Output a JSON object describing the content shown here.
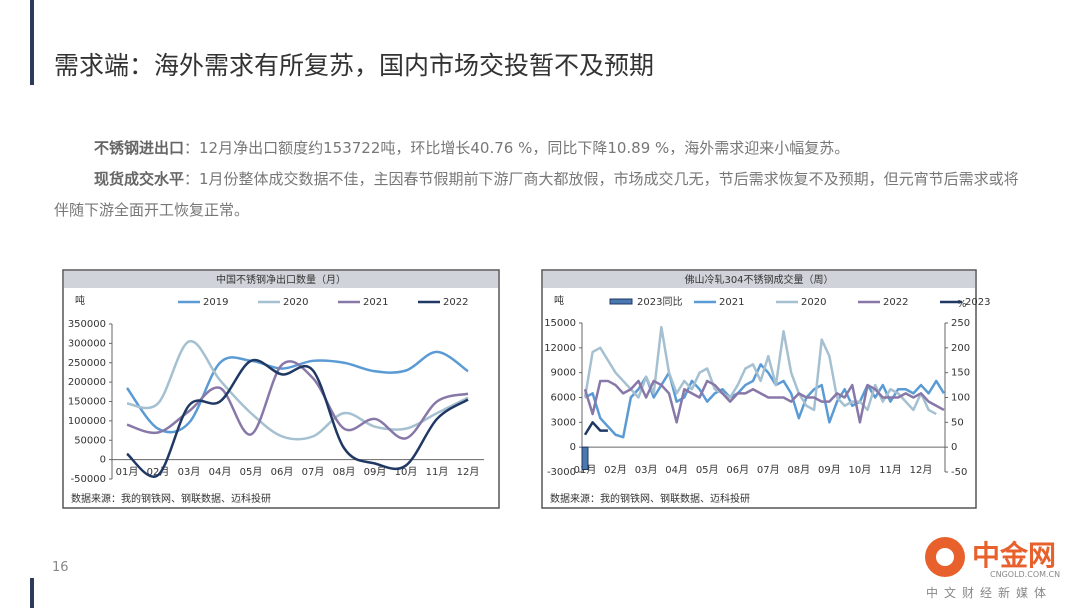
{
  "title": "需求端：海外需求有所复苏，国内市场交投暂不及预期",
  "paragraphs": [
    {
      "label": "不锈钢进出口",
      "text": "：12月净出口额度约153722吨，环比增长40.76 %，同比下降10.89 %，海外需求迎来小幅复苏。"
    },
    {
      "label": "现货成交水平",
      "text": "：1月份整体成交数据不佳，主因春节假期前下游厂商大都放假，市场成交几无，节后需求恢复不及预期，但元宵节后需求或将伴随下游全面开工恢复正常。"
    }
  ],
  "page_number": "16",
  "watermark": {
    "name": "中金网",
    "site": "CNGOLD.COM.CN",
    "slogan": "中文财经新媒体"
  },
  "chart_data": [
    {
      "type": "line",
      "smooth": true,
      "title": "中国不锈钢净出口数量（月）",
      "ylabel": "吨",
      "source": "数据来源：我的钢铁网、钢联数据、迈科投研",
      "categories": [
        "01月",
        "02月",
        "03月",
        "04月",
        "05月",
        "06月",
        "07月",
        "08月",
        "09月",
        "10月",
        "11月",
        "12月"
      ],
      "ylim": [
        -50000,
        350000
      ],
      "yticks": [
        -50000,
        0,
        50000,
        100000,
        150000,
        200000,
        250000,
        300000,
        350000
      ],
      "series": [
        {
          "name": "2019",
          "color": "#5b9bd5",
          "values": [
            185000,
            80000,
            95000,
            250000,
            255000,
            235000,
            255000,
            250000,
            228000,
            230000,
            278000,
            228000
          ]
        },
        {
          "name": "2020",
          "color": "#a5c0d0",
          "values": [
            145000,
            145000,
            305000,
            205000,
            120000,
            60000,
            60000,
            120000,
            85000,
            80000,
            120000,
            160000
          ]
        },
        {
          "name": "2021",
          "color": "#8878a8",
          "values": [
            90000,
            70000,
            125000,
            185000,
            65000,
            245000,
            210000,
            80000,
            105000,
            55000,
            150000,
            170000
          ]
        },
        {
          "name": "2022",
          "color": "#1f3864",
          "values": [
            15000,
            -40000,
            140000,
            150000,
            255000,
            220000,
            230000,
            30000,
            -10000,
            -15000,
            105000,
            155000
          ]
        }
      ]
    },
    {
      "type": "line",
      "smooth": false,
      "title": "佛山冷轧304不锈钢成交量（周）",
      "ylabel": "吨",
      "y2label": "%",
      "source": "数据来源：我的钢铁网、钢联数据、迈科投研",
      "categories": [
        "01月",
        null,
        null,
        null,
        "02月",
        null,
        null,
        null,
        "03月",
        null,
        null,
        null,
        "04月",
        null,
        null,
        null,
        "05月",
        null,
        null,
        null,
        "06月",
        null,
        null,
        null,
        "07月",
        null,
        null,
        null,
        "08月",
        null,
        null,
        null,
        "09月",
        null,
        null,
        null,
        "10月",
        null,
        null,
        null,
        "11月",
        null,
        null,
        null,
        "12月",
        null,
        null,
        null
      ],
      "ylim": [
        -3000,
        15000
      ],
      "yticks": [
        -3000,
        0,
        3000,
        6000,
        9000,
        12000,
        15000
      ],
      "y2lim": [
        -50,
        250
      ],
      "y2ticks": [
        -50,
        0,
        50,
        100,
        150,
        200,
        250
      ],
      "series": [
        {
          "name": "2023同比",
          "kind": "bar",
          "axis": "y2",
          "color": "#4a78b0",
          "values": [
            -45,
            null,
            null,
            null,
            null,
            null,
            null,
            null,
            null,
            null,
            null,
            null,
            null,
            null,
            null,
            null,
            null,
            null,
            null,
            null,
            null,
            null,
            null,
            null,
            null,
            null,
            null,
            null,
            null,
            null,
            null,
            null,
            null,
            null,
            null,
            null,
            null,
            null,
            null,
            null,
            null,
            null,
            null,
            null,
            null,
            null,
            null,
            null
          ]
        },
        {
          "name": "2021",
          "color": "#5b9bd5",
          "values": [
            6000,
            6500,
            3500,
            2500,
            1500,
            1200,
            6000,
            7000,
            8500,
            6000,
            7500,
            9000,
            5500,
            6000,
            8000,
            7000,
            5500,
            6500,
            7000,
            6000,
            6500,
            7500,
            8000,
            10000,
            9000,
            7500,
            8000,
            6500,
            3500,
            6000,
            7000,
            7500,
            3000,
            5500,
            7000,
            5000,
            5500,
            7500,
            6000,
            7500,
            5500,
            7000,
            7000,
            6500,
            7500,
            6500,
            8000,
            6500
          ]
        },
        {
          "name": "2020",
          "color": "#a5c0d0",
          "values": [
            6000,
            11500,
            12000,
            10500,
            9000,
            8000,
            7000,
            6000,
            8500,
            6500,
            14500,
            9000,
            6500,
            8000,
            7000,
            9000,
            9500,
            7000,
            6500,
            6000,
            7500,
            9500,
            10000,
            8000,
            11000,
            7500,
            14000,
            9000,
            6500,
            5000,
            4500,
            13000,
            11000,
            6000,
            5000,
            5500,
            5500,
            4500,
            7500,
            5500,
            7000,
            6500,
            5500,
            4500,
            6500,
            4500,
            4000,
            null
          ]
        },
        {
          "name": "2022",
          "color": "#8878a8",
          "values": [
            7000,
            4000,
            8000,
            8000,
            7500,
            6500,
            7000,
            8000,
            6000,
            8000,
            7500,
            6500,
            3000,
            7000,
            6500,
            6000,
            8000,
            7500,
            6500,
            5500,
            6500,
            6500,
            7000,
            6500,
            6000,
            6000,
            6000,
            5500,
            6500,
            6000,
            6000,
            5500,
            5500,
            6500,
            6000,
            7500,
            3000,
            7500,
            7000,
            6000,
            6000,
            6000,
            6500,
            6000,
            6500,
            5500,
            5000,
            4500
          ]
        },
        {
          "name": "2023",
          "color": "#1f3864",
          "values": [
            1500,
            3000,
            2000,
            2000,
            null,
            null,
            null,
            null,
            null,
            null,
            null,
            null,
            null,
            null,
            null,
            null,
            null,
            null,
            null,
            null,
            null,
            null,
            null,
            null,
            null,
            null,
            null,
            null,
            null,
            null,
            null,
            null,
            null,
            null,
            null,
            null,
            null,
            null,
            null,
            null,
            null,
            null,
            null,
            null,
            null,
            null,
            null,
            null
          ]
        }
      ]
    }
  ]
}
